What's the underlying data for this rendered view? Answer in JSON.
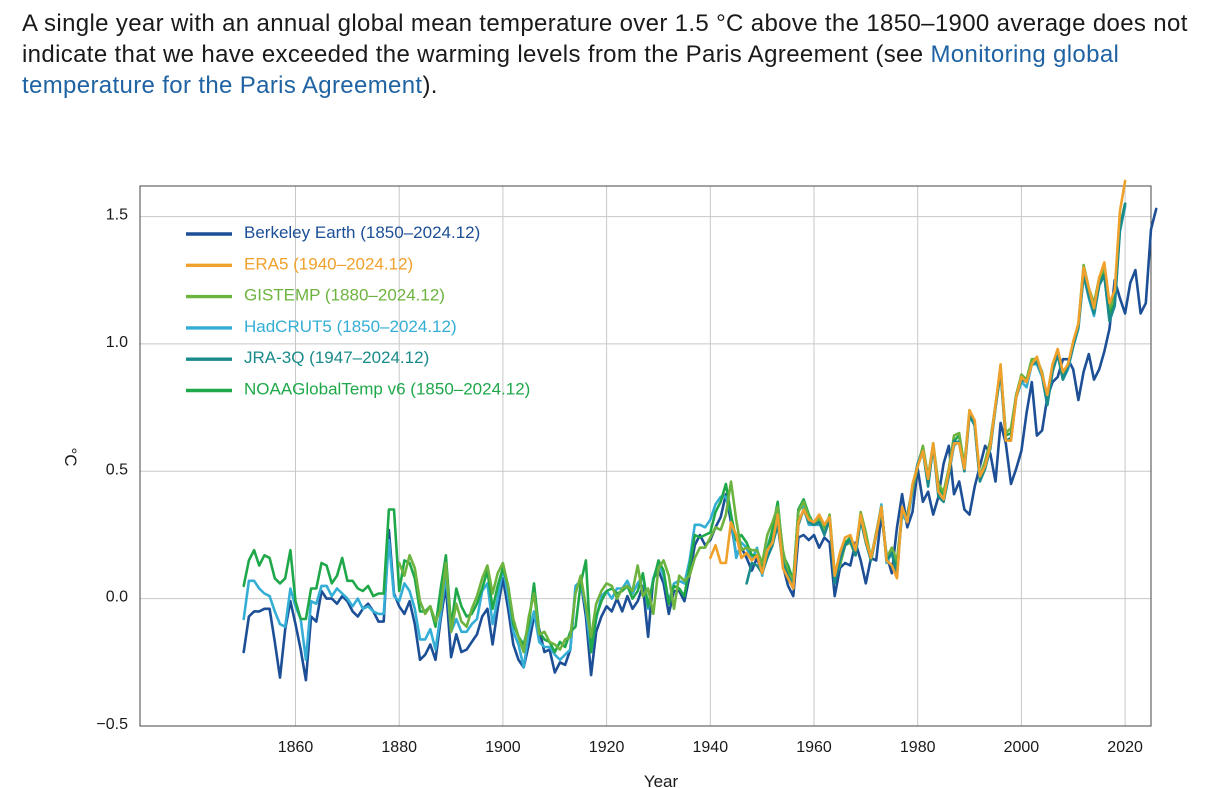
{
  "intro": {
    "text_before": "A single year with an annual global mean temperature over 1.5 °C above the 1850–1900 average does not indicate that we have exceeded the warming levels from the Paris Agreement (see ",
    "link_text": "Monitoring global temperature for the Paris Agreement",
    "text_after": ")."
  },
  "colors": {
    "link": "#1f63a3",
    "grid": "#c8c8c8",
    "axis": "#444444"
  },
  "chart_data": {
    "type": "line",
    "title": "",
    "xlabel": "Year",
    "ylabel": "°C",
    "xlim": [
      1830,
      2025
    ],
    "ylim": [
      -0.5,
      1.62
    ],
    "grid": true,
    "legend_position": "top-left",
    "x_ticks": [
      1860,
      1880,
      1900,
      1920,
      1940,
      1960,
      1980,
      2000,
      2020
    ],
    "y_ticks": [
      -0.5,
      0.0,
      0.5,
      1.0,
      1.5
    ],
    "y_tick_labels": [
      "−0.5",
      "0.0",
      "0.5",
      "1.0",
      "1.5"
    ],
    "series": [
      {
        "name": "Berkeley Earth (1850–2024.12)",
        "color": "#1c4f96",
        "start": 1850,
        "values": [
          -0.21,
          -0.07,
          -0.05,
          -0.05,
          -0.04,
          -0.04,
          -0.17,
          -0.31,
          -0.12,
          -0.01,
          -0.1,
          -0.2,
          -0.32,
          -0.07,
          -0.09,
          0.03,
          0.0,
          0.0,
          -0.02,
          0.01,
          -0.01,
          -0.05,
          -0.07,
          -0.04,
          -0.02,
          -0.05,
          -0.09,
          -0.09,
          0.27,
          0.02,
          -0.03,
          -0.06,
          -0.01,
          -0.1,
          -0.24,
          -0.22,
          -0.18,
          -0.24,
          -0.08,
          0.05,
          -0.23,
          -0.14,
          -0.21,
          -0.2,
          -0.17,
          -0.14,
          -0.07,
          -0.04,
          -0.18,
          -0.04,
          0.08,
          -0.04,
          -0.18,
          -0.24,
          -0.27,
          -0.18,
          -0.07,
          -0.12,
          -0.21,
          -0.2,
          -0.29,
          -0.25,
          -0.26,
          -0.2,
          0.04,
          0.07,
          -0.07,
          -0.3,
          -0.13,
          -0.07,
          -0.03,
          -0.05,
          0.0,
          -0.05,
          0.01,
          -0.04,
          -0.01,
          0.05,
          -0.15,
          0.08,
          0.11,
          0.06,
          -0.06,
          0.03,
          0.03,
          -0.01,
          0.09,
          0.21,
          0.25,
          0.21,
          0.23,
          0.28,
          0.32,
          0.41,
          0.3,
          0.17,
          0.2,
          0.16,
          0.11,
          0.16,
          0.1,
          0.2,
          0.25,
          0.3,
          0.13,
          0.05,
          0.01,
          0.24,
          0.25,
          0.23,
          0.25,
          0.2,
          0.24,
          0.22,
          0.01,
          0.12,
          0.14,
          0.13,
          0.22,
          0.15,
          0.06,
          0.16,
          0.15,
          0.33,
          0.17,
          0.1,
          0.28,
          0.41,
          0.28,
          0.34,
          0.51,
          0.38,
          0.42,
          0.33,
          0.4,
          0.53,
          0.6,
          0.41,
          0.46,
          0.35,
          0.33,
          0.44,
          0.52,
          0.6,
          0.57,
          0.46,
          0.69,
          0.61,
          0.45,
          0.51,
          0.58,
          0.73,
          0.85,
          0.64,
          0.66,
          0.79,
          0.85,
          0.87,
          0.94,
          0.94,
          0.9,
          0.78,
          0.89,
          0.96,
          0.86,
          0.9,
          0.97,
          1.06,
          1.25,
          1.18,
          1.12,
          1.24,
          1.29,
          1.12,
          1.16,
          1.45,
          1.53
        ]
      },
      {
        "name": "ERA5 (1940–2024.12)",
        "color": "#f0a12c",
        "start": 1940,
        "values": [
          0.16,
          0.21,
          0.14,
          0.14,
          0.3,
          0.25,
          0.16,
          0.18,
          0.15,
          0.17,
          0.1,
          0.19,
          0.22,
          0.33,
          0.12,
          0.08,
          0.04,
          0.3,
          0.35,
          0.31,
          0.3,
          0.33,
          0.29,
          0.32,
          0.09,
          0.18,
          0.24,
          0.25,
          0.19,
          0.33,
          0.23,
          0.16,
          0.25,
          0.36,
          0.15,
          0.13,
          0.08,
          0.36,
          0.3,
          0.45,
          0.52,
          0.58,
          0.47,
          0.61,
          0.42,
          0.39,
          0.5,
          0.61,
          0.61,
          0.51,
          0.74,
          0.7,
          0.48,
          0.52,
          0.6,
          0.76,
          0.92,
          0.62,
          0.62,
          0.79,
          0.87,
          0.85,
          0.92,
          0.95,
          0.88,
          0.8,
          0.92,
          0.98,
          0.89,
          0.92,
          1.01,
          1.08,
          1.3,
          1.22,
          1.14,
          1.26,
          1.32,
          1.16,
          1.21,
          1.52,
          1.64
        ]
      },
      {
        "name": "GISTEMP (1880–2024.12)",
        "color": "#6db33f",
        "start": 1880,
        "values": [
          0.14,
          0.09,
          0.17,
          0.12,
          -0.01,
          -0.06,
          -0.03,
          -0.09,
          -0.04,
          0.14,
          -0.13,
          -0.02,
          -0.09,
          -0.11,
          -0.04,
          0.01,
          0.08,
          0.13,
          0.02,
          0.1,
          0.14,
          0.05,
          -0.08,
          -0.15,
          -0.21,
          -0.07,
          0.02,
          -0.14,
          -0.13,
          -0.17,
          -0.18,
          -0.2,
          -0.16,
          -0.15,
          0.02,
          0.09,
          -0.03,
          -0.15,
          -0.02,
          0.03,
          0.06,
          0.05,
          0.0,
          0.04,
          0.05,
          0.03,
          0.13,
          0.01,
          0.04,
          -0.06,
          0.12,
          0.15,
          0.09,
          -0.04,
          0.09,
          0.07,
          0.09,
          0.16,
          0.2,
          0.2,
          0.24,
          0.28,
          0.27,
          0.33,
          0.46,
          0.31,
          0.19,
          0.2,
          0.19,
          0.19,
          0.14,
          0.25,
          0.3,
          0.36,
          0.19,
          0.1,
          0.08,
          0.34,
          0.38,
          0.32,
          0.29,
          0.32,
          0.26,
          0.33,
          0.1,
          0.13,
          0.21,
          0.22,
          0.17,
          0.34,
          0.26,
          0.16,
          0.26,
          0.36,
          0.16,
          0.2,
          0.15,
          0.34,
          0.33,
          0.43,
          0.52,
          0.6,
          0.48,
          0.61,
          0.45,
          0.42,
          0.51,
          0.64,
          0.65,
          0.52,
          0.74,
          0.69,
          0.48,
          0.54,
          0.62,
          0.76,
          0.9,
          0.65,
          0.67,
          0.8,
          0.88,
          0.86,
          0.94,
          0.94,
          0.89,
          0.78,
          0.91,
          0.97,
          0.88,
          0.92,
          1.0,
          1.08,
          1.31,
          1.22,
          1.16,
          1.26,
          1.3,
          1.14,
          1.18,
          1.46,
          1.55
        ]
      },
      {
        "name": "HadCRUT5 (1850–2024.12)",
        "color": "#35aed6",
        "start": 1850,
        "values": [
          -0.08,
          0.07,
          0.07,
          0.04,
          0.02,
          0.01,
          -0.05,
          -0.1,
          -0.11,
          0.04,
          -0.03,
          -0.08,
          -0.24,
          -0.01,
          -0.02,
          0.05,
          0.05,
          0.01,
          0.04,
          0.02,
          0.0,
          -0.03,
          0.0,
          -0.04,
          -0.03,
          -0.05,
          -0.06,
          -0.06,
          0.23,
          0.01,
          -0.01,
          0.06,
          0.03,
          -0.04,
          -0.16,
          -0.16,
          -0.12,
          -0.2,
          -0.06,
          0.09,
          -0.13,
          -0.08,
          -0.13,
          -0.13,
          -0.1,
          -0.08,
          0.03,
          0.06,
          -0.1,
          0.0,
          0.12,
          0.01,
          -0.13,
          -0.18,
          -0.27,
          -0.13,
          -0.05,
          -0.17,
          -0.19,
          -0.19,
          -0.22,
          -0.24,
          -0.22,
          -0.2,
          0.05,
          0.07,
          -0.04,
          -0.21,
          -0.08,
          0.01,
          0.03,
          0.0,
          0.04,
          0.04,
          0.07,
          0.02,
          0.06,
          0.09,
          -0.04,
          0.08,
          0.14,
          0.09,
          -0.01,
          0.06,
          0.07,
          0.06,
          0.15,
          0.29,
          0.29,
          0.28,
          0.31,
          0.37,
          0.4,
          0.4,
          0.33,
          0.16,
          0.22,
          0.2,
          0.15,
          0.2,
          0.09,
          0.2,
          0.27,
          0.37,
          0.18,
          0.09,
          0.06,
          0.35,
          0.36,
          0.29,
          0.29,
          0.29,
          0.29,
          0.32,
          0.08,
          0.13,
          0.21,
          0.23,
          0.17,
          0.31,
          0.23,
          0.15,
          0.25,
          0.37,
          0.14,
          0.18,
          0.13,
          0.33,
          0.3,
          0.42,
          0.53,
          0.59,
          0.45,
          0.61,
          0.42,
          0.4,
          0.49,
          0.6,
          0.62,
          0.53,
          0.72,
          0.68,
          0.47,
          0.51,
          0.59,
          0.75,
          0.89,
          0.62,
          0.63,
          0.79,
          0.85,
          0.83,
          0.92,
          0.92,
          0.87,
          0.76,
          0.89,
          0.96,
          0.86,
          0.9,
          0.99,
          1.06,
          1.27,
          1.18,
          1.11,
          1.23,
          1.27,
          1.09,
          1.15,
          1.44,
          1.54
        ]
      },
      {
        "name": "JRA-3Q (1947–2024.12)",
        "color": "#1a8a8a",
        "start": 1947,
        "values": [
          0.06,
          0.14,
          0.13,
          0.1,
          0.16,
          0.21,
          0.29,
          0.14,
          0.09,
          0.04,
          0.29,
          0.35,
          0.3,
          0.29,
          0.3,
          0.25,
          0.31,
          0.06,
          0.15,
          0.21,
          0.23,
          0.17,
          0.31,
          0.22,
          0.15,
          0.25,
          0.36,
          0.15,
          0.18,
          0.09,
          0.35,
          0.32,
          0.44,
          0.53,
          0.58,
          0.44,
          0.6,
          0.4,
          0.38,
          0.48,
          0.62,
          0.61,
          0.5,
          0.72,
          0.68,
          0.46,
          0.51,
          0.59,
          0.75,
          0.89,
          0.62,
          0.63,
          0.79,
          0.86,
          0.85,
          0.92,
          0.93,
          0.88,
          0.76,
          0.89,
          0.96,
          0.86,
          0.91,
          0.99,
          1.07,
          1.27,
          1.19,
          1.12,
          1.23,
          1.27,
          1.09,
          1.15,
          1.45,
          1.55
        ]
      },
      {
        "name": "NOAAGlobalTemp v6 (1850–2024.12)",
        "color": "#1fa84a",
        "start": 1850,
        "values": [
          0.05,
          0.15,
          0.19,
          0.13,
          0.17,
          0.16,
          0.08,
          0.06,
          0.08,
          0.19,
          -0.01,
          -0.08,
          -0.08,
          0.04,
          0.04,
          0.14,
          0.13,
          0.06,
          0.09,
          0.16,
          0.07,
          0.07,
          0.04,
          0.03,
          0.05,
          0.01,
          0.02,
          0.02,
          0.35,
          0.35,
          0.03,
          0.15,
          0.14,
          0.08,
          -0.05,
          -0.05,
          -0.03,
          -0.11,
          0.04,
          0.17,
          -0.11,
          0.04,
          -0.03,
          -0.07,
          -0.06,
          -0.02,
          0.04,
          0.11,
          -0.04,
          0.05,
          0.12,
          0.05,
          -0.1,
          -0.15,
          -0.18,
          -0.1,
          0.06,
          -0.13,
          -0.16,
          -0.17,
          -0.21,
          -0.17,
          -0.19,
          -0.13,
          -0.11,
          0.06,
          0.15,
          -0.21,
          -0.07,
          -0.01,
          0.03,
          0.04,
          0.02,
          0.03,
          0.05,
          0.0,
          0.03,
          0.1,
          -0.03,
          0.07,
          0.15,
          0.11,
          -0.02,
          0.05,
          0.04,
          0.01,
          0.13,
          0.25,
          0.24,
          0.25,
          0.26,
          0.34,
          0.38,
          0.45,
          0.33,
          0.23,
          0.25,
          0.22,
          0.17,
          0.17,
          0.12,
          0.19,
          0.27,
          0.38,
          0.17,
          0.13,
          0.07,
          0.35,
          0.39,
          0.33,
          0.29,
          0.31,
          0.28,
          0.32,
          0.08,
          0.14,
          0.22,
          0.24,
          0.18,
          0.33,
          0.23,
          0.15,
          0.25,
          0.35,
          0.15,
          0.2,
          0.13,
          0.34,
          0.33,
          0.43,
          0.52,
          0.58,
          0.47,
          0.6,
          0.44,
          0.41,
          0.49,
          0.62,
          0.64,
          0.51,
          0.73,
          0.68,
          0.47,
          0.52,
          0.61,
          0.76,
          0.9,
          0.64,
          0.65,
          0.8,
          0.87,
          0.86,
          0.94,
          0.94,
          0.88,
          0.77,
          0.9,
          0.97,
          0.87,
          0.92,
          1.0,
          1.07,
          1.3,
          1.2,
          1.14,
          1.25,
          1.28,
          1.12,
          1.17,
          1.46,
          1.55
        ]
      }
    ]
  }
}
